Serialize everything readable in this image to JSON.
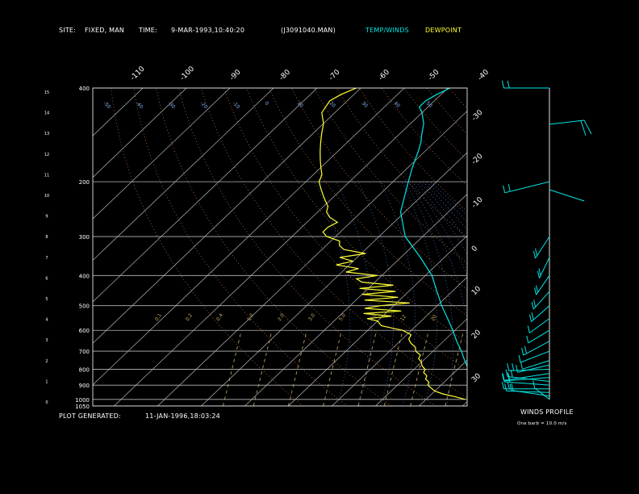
{
  "header": {
    "site_label": "SITE:",
    "site_value": "FIXED, MAN",
    "time_label": "TIME:",
    "time_value": "9-MAR-1993,10:40:20",
    "file_id": "(J3091040.MAN)",
    "legend_temp": "TEMP/WINDS",
    "legend_dewpoint": "DEWPOINT"
  },
  "footer": {
    "generated_label": "PLOT GENERATED:",
    "generated_value": "11-JAN-1996,18:03:24",
    "winds_title": "WINDS PROFILE",
    "barb_note": "One barb = 10.0 m/s"
  },
  "colors": {
    "background": "#000000",
    "temp": "#00e5e5",
    "dewpoint": "#ffff33",
    "isotherm": "#b8b8b8",
    "isobar": "#b8b8b8",
    "dry_adiabat": "#c07040",
    "moist_adiabat": "#5070d0",
    "mixing_ratio": "#c8b060",
    "text": "#ffffff"
  },
  "chart_data": {
    "type": "line",
    "chart_kind": "skew-t log-p thermodynamic diagram",
    "pressure_ticks_hpa": [
      400,
      200,
      300,
      400,
      500,
      600,
      700,
      800,
      900,
      1000,
      1050
    ],
    "height_ticks_km": [
      "0",
      "1",
      "2",
      "3",
      "4",
      "5",
      "6",
      "7",
      "8",
      "9",
      "10",
      "11",
      "12",
      "13",
      "14",
      "15"
    ],
    "top_temp_ticks_c": [
      "-110",
      "-100",
      "-90",
      "-80",
      "-70",
      "-60",
      "-50",
      "-40"
    ],
    "right_temp_ticks_c": [
      "-30",
      "-20",
      "-10",
      "0",
      "10",
      "20",
      "30"
    ],
    "mixing_ratio_labels_gkg": [
      "0.1",
      "0.2",
      "0.4",
      "1.0",
      "2.0",
      "3.0",
      "5.0",
      "8.0",
      "12",
      "20"
    ],
    "isotherm_labels_top": [
      "-50",
      "-40",
      "-30",
      "-20",
      "-10",
      "0",
      "10",
      "20",
      "30",
      "40",
      "50"
    ],
    "legend": "top",
    "series": [
      {
        "name": "TEMP/WINDS",
        "points": [
          {
            "p": 1000,
            "t": 15.0
          },
          {
            "p": 975,
            "t": 13.0
          },
          {
            "p": 950,
            "t": 11.2
          },
          {
            "p": 925,
            "t": 9.5
          },
          {
            "p": 900,
            "t": 8.0
          },
          {
            "p": 875,
            "t": 6.8
          },
          {
            "p": 850,
            "t": 5.5
          },
          {
            "p": 800,
            "t": 2.5
          },
          {
            "p": 750,
            "t": -0.5
          },
          {
            "p": 700,
            "t": -3.5
          },
          {
            "p": 650,
            "t": -7.0
          },
          {
            "p": 600,
            "t": -10.5
          },
          {
            "p": 550,
            "t": -14.5
          },
          {
            "p": 500,
            "t": -19.0
          },
          {
            "p": 450,
            "t": -23.5
          },
          {
            "p": 400,
            "t": -28.5
          },
          {
            "p": 350,
            "t": -35.5
          },
          {
            "p": 300,
            "t": -44.0
          },
          {
            "p": 250,
            "t": -51.0
          },
          {
            "p": 200,
            "t": -56.5
          },
          {
            "p": 180,
            "t": -59.0
          },
          {
            "p": 160,
            "t": -61.5
          },
          {
            "p": 150,
            "t": -63.0
          },
          {
            "p": 140,
            "t": -65.0
          },
          {
            "p": 130,
            "t": -67.0
          },
          {
            "p": 120,
            "t": -70.0
          },
          {
            "p": 115,
            "t": -72.0
          },
          {
            "p": 110,
            "t": -72.0
          },
          {
            "p": 105,
            "t": -71.0
          },
          {
            "p": 100,
            "t": -69.5
          }
        ]
      },
      {
        "name": "DEWPOINT",
        "points": [
          {
            "p": 1000,
            "t": 9.0
          },
          {
            "p": 980,
            "t": 6.0
          },
          {
            "p": 960,
            "t": 2.5
          },
          {
            "p": 940,
            "t": 0.0
          },
          {
            "p": 920,
            "t": -1.5
          },
          {
            "p": 900,
            "t": -3.0
          },
          {
            "p": 880,
            "t": -3.5
          },
          {
            "p": 860,
            "t": -5.0
          },
          {
            "p": 840,
            "t": -5.5
          },
          {
            "p": 820,
            "t": -7.0
          },
          {
            "p": 800,
            "t": -7.5
          },
          {
            "p": 780,
            "t": -9.0
          },
          {
            "p": 760,
            "t": -10.0
          },
          {
            "p": 740,
            "t": -11.5
          },
          {
            "p": 720,
            "t": -12.0
          },
          {
            "p": 700,
            "t": -14.0
          },
          {
            "p": 680,
            "t": -15.0
          },
          {
            "p": 660,
            "t": -17.0
          },
          {
            "p": 640,
            "t": -18.5
          },
          {
            "p": 620,
            "t": -19.0
          },
          {
            "p": 600,
            "t": -22.0
          },
          {
            "p": 590,
            "t": -25.0
          },
          {
            "p": 580,
            "t": -28.0
          },
          {
            "p": 570,
            "t": -29.0
          },
          {
            "p": 560,
            "t": -30.0
          },
          {
            "p": 550,
            "t": -33.0
          },
          {
            "p": 540,
            "t": -28.0
          },
          {
            "p": 530,
            "t": -35.0
          },
          {
            "p": 520,
            "t": -27.0
          },
          {
            "p": 510,
            "t": -36.0
          },
          {
            "p": 500,
            "t": -33.0
          },
          {
            "p": 490,
            "t": -27.0
          },
          {
            "p": 480,
            "t": -38.0
          },
          {
            "p": 470,
            "t": -31.0
          },
          {
            "p": 460,
            "t": -40.0
          },
          {
            "p": 450,
            "t": -33.0
          },
          {
            "p": 440,
            "t": -42.0
          },
          {
            "p": 430,
            "t": -35.0
          },
          {
            "p": 420,
            "t": -43.0
          },
          {
            "p": 410,
            "t": -45.0
          },
          {
            "p": 400,
            "t": -41.0
          },
          {
            "p": 390,
            "t": -49.0
          },
          {
            "p": 380,
            "t": -47.0
          },
          {
            "p": 370,
            "t": -53.0
          },
          {
            "p": 360,
            "t": -50.0
          },
          {
            "p": 350,
            "t": -54.0
          },
          {
            "p": 340,
            "t": -49.0
          },
          {
            "p": 330,
            "t": -55.0
          },
          {
            "p": 320,
            "t": -57.0
          },
          {
            "p": 310,
            "t": -58.0
          },
          {
            "p": 300,
            "t": -62.0
          },
          {
            "p": 290,
            "t": -64.0
          },
          {
            "p": 280,
            "t": -64.0
          },
          {
            "p": 270,
            "t": -63.0
          },
          {
            "p": 260,
            "t": -66.0
          },
          {
            "p": 250,
            "t": -68.0
          },
          {
            "p": 240,
            "t": -69.0
          },
          {
            "p": 230,
            "t": -71.0
          },
          {
            "p": 220,
            "t": -73.0
          },
          {
            "p": 210,
            "t": -75.0
          },
          {
            "p": 200,
            "t": -77.0
          },
          {
            "p": 190,
            "t": -78.0
          },
          {
            "p": 180,
            "t": -80.0
          },
          {
            "p": 170,
            "t": -82.0
          },
          {
            "p": 160,
            "t": -84.0
          },
          {
            "p": 150,
            "t": -86.0
          },
          {
            "p": 140,
            "t": -88.0
          },
          {
            "p": 130,
            "t": -90.0
          },
          {
            "p": 120,
            "t": -93.0
          },
          {
            "p": 110,
            "t": -94.0
          },
          {
            "p": 105,
            "t": -93.0
          },
          {
            "p": 100,
            "t": -91.0
          }
        ]
      }
    ],
    "wind_profile": [
      {
        "p": 1000,
        "speed_ms": 8,
        "dir_deg": 160
      },
      {
        "p": 975,
        "speed_ms": 14,
        "dir_deg": 110
      },
      {
        "p": 950,
        "speed_ms": 18,
        "dir_deg": 95
      },
      {
        "p": 925,
        "speed_ms": 20,
        "dir_deg": 90
      },
      {
        "p": 900,
        "speed_ms": 20,
        "dir_deg": 100
      },
      {
        "p": 875,
        "speed_ms": 18,
        "dir_deg": 105
      },
      {
        "p": 850,
        "speed_ms": 20,
        "dir_deg": 80
      },
      {
        "p": 825,
        "speed_ms": 22,
        "dir_deg": 70
      },
      {
        "p": 800,
        "speed_ms": 16,
        "dir_deg": 85
      },
      {
        "p": 775,
        "speed_ms": 12,
        "dir_deg": 60
      },
      {
        "p": 750,
        "speed_ms": 10,
        "dir_deg": 50
      },
      {
        "p": 700,
        "speed_ms": 14,
        "dir_deg": 45
      },
      {
        "p": 650,
        "speed_ms": 16,
        "dir_deg": 35
      },
      {
        "p": 600,
        "speed_ms": 12,
        "dir_deg": 30
      },
      {
        "p": 550,
        "speed_ms": 14,
        "dir_deg": 25
      },
      {
        "p": 500,
        "speed_ms": 16,
        "dir_deg": 20
      },
      {
        "p": 450,
        "speed_ms": 18,
        "dir_deg": 15
      },
      {
        "p": 400,
        "speed_ms": 20,
        "dir_deg": 10
      },
      {
        "p": 350,
        "speed_ms": 22,
        "dir_deg": 5
      },
      {
        "p": 300,
        "speed_ms": 24,
        "dir_deg": 350
      },
      {
        "p": 200,
        "speed_ms": 24,
        "dir_deg": 300
      },
      {
        "p": 100,
        "speed_ms": 20,
        "dir_deg": 270
      }
    ]
  }
}
